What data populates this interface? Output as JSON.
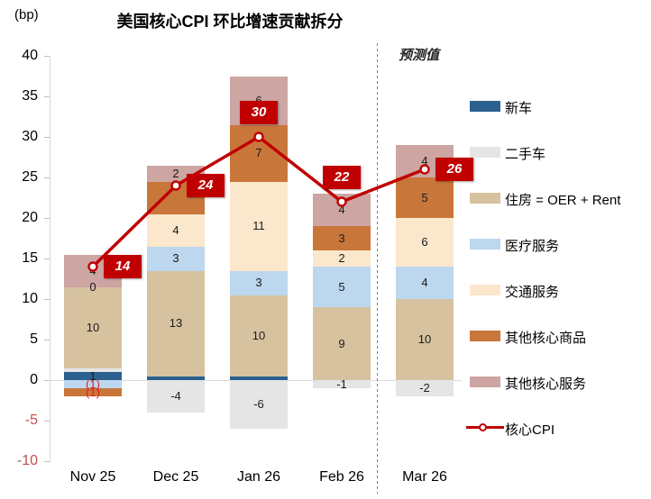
{
  "chart_data": {
    "type": "bar",
    "subtype": "stacked-bars-with-line-overlay",
    "title": "美国核心CPI 环比增速贡献拆分",
    "unit_label": "(bp)",
    "forecast_label": "预测值",
    "categories": [
      "Nov 25",
      "Dec 25",
      "Jan 26",
      "Feb 26",
      "Mar 26"
    ],
    "ylim": [
      -10,
      40
    ],
    "ytick_step": 5,
    "grid": "none",
    "legend_position": "right",
    "forecast_divider_after_category": "Feb 26",
    "series": [
      {
        "name": "新车",
        "color": "#2B608F",
        "values": [
          1,
          0.5,
          0.5,
          0,
          0
        ],
        "labels": [
          "1",
          null,
          null,
          null,
          null
        ]
      },
      {
        "name": "二手车",
        "color": "#E5E5E5",
        "values": [
          0.5,
          -4,
          -6,
          -1,
          -2
        ],
        "labels": [
          null,
          "-4",
          "-6",
          "-1",
          "-2"
        ]
      },
      {
        "name": "住房 = OER + Rent",
        "color": "#D7C2A0",
        "values": [
          10,
          13,
          10,
          9,
          10
        ],
        "labels": [
          "10",
          "13",
          "10",
          "9",
          "10"
        ]
      },
      {
        "name": "医疗服务",
        "color": "#BDD7EE",
        "values": [
          -1,
          3,
          3,
          5,
          4
        ],
        "labels": [
          "(1)",
          "3",
          "3",
          "5",
          "4"
        ]
      },
      {
        "name": "交通服务",
        "color": "#FBE7CB",
        "values": [
          0,
          4,
          11,
          2,
          6
        ],
        "labels": [
          "0",
          "4",
          "11",
          "2",
          "6"
        ]
      },
      {
        "name": "其他核心商品",
        "color": "#C9763B",
        "values": [
          -1,
          4,
          7,
          3,
          5
        ],
        "labels": [
          "(1)",
          null,
          "7",
          "3",
          "5"
        ]
      },
      {
        "name": "其他核心服务",
        "color": "#CDA5A3",
        "values": [
          4,
          2,
          6,
          4,
          4
        ],
        "labels": [
          "4",
          "2",
          "6",
          "4",
          "4"
        ]
      }
    ],
    "line_series": {
      "name": "核心CPI",
      "color": "#C00000",
      "values": [
        14,
        24,
        30,
        22,
        26
      ],
      "point_labels": [
        "14",
        "24",
        "30",
        "22",
        "26"
      ],
      "label_placement": [
        "right",
        "right",
        "above",
        "above",
        "right"
      ]
    },
    "negative_tick_color": "#C0504D",
    "negative_label_color": "#E02020"
  }
}
